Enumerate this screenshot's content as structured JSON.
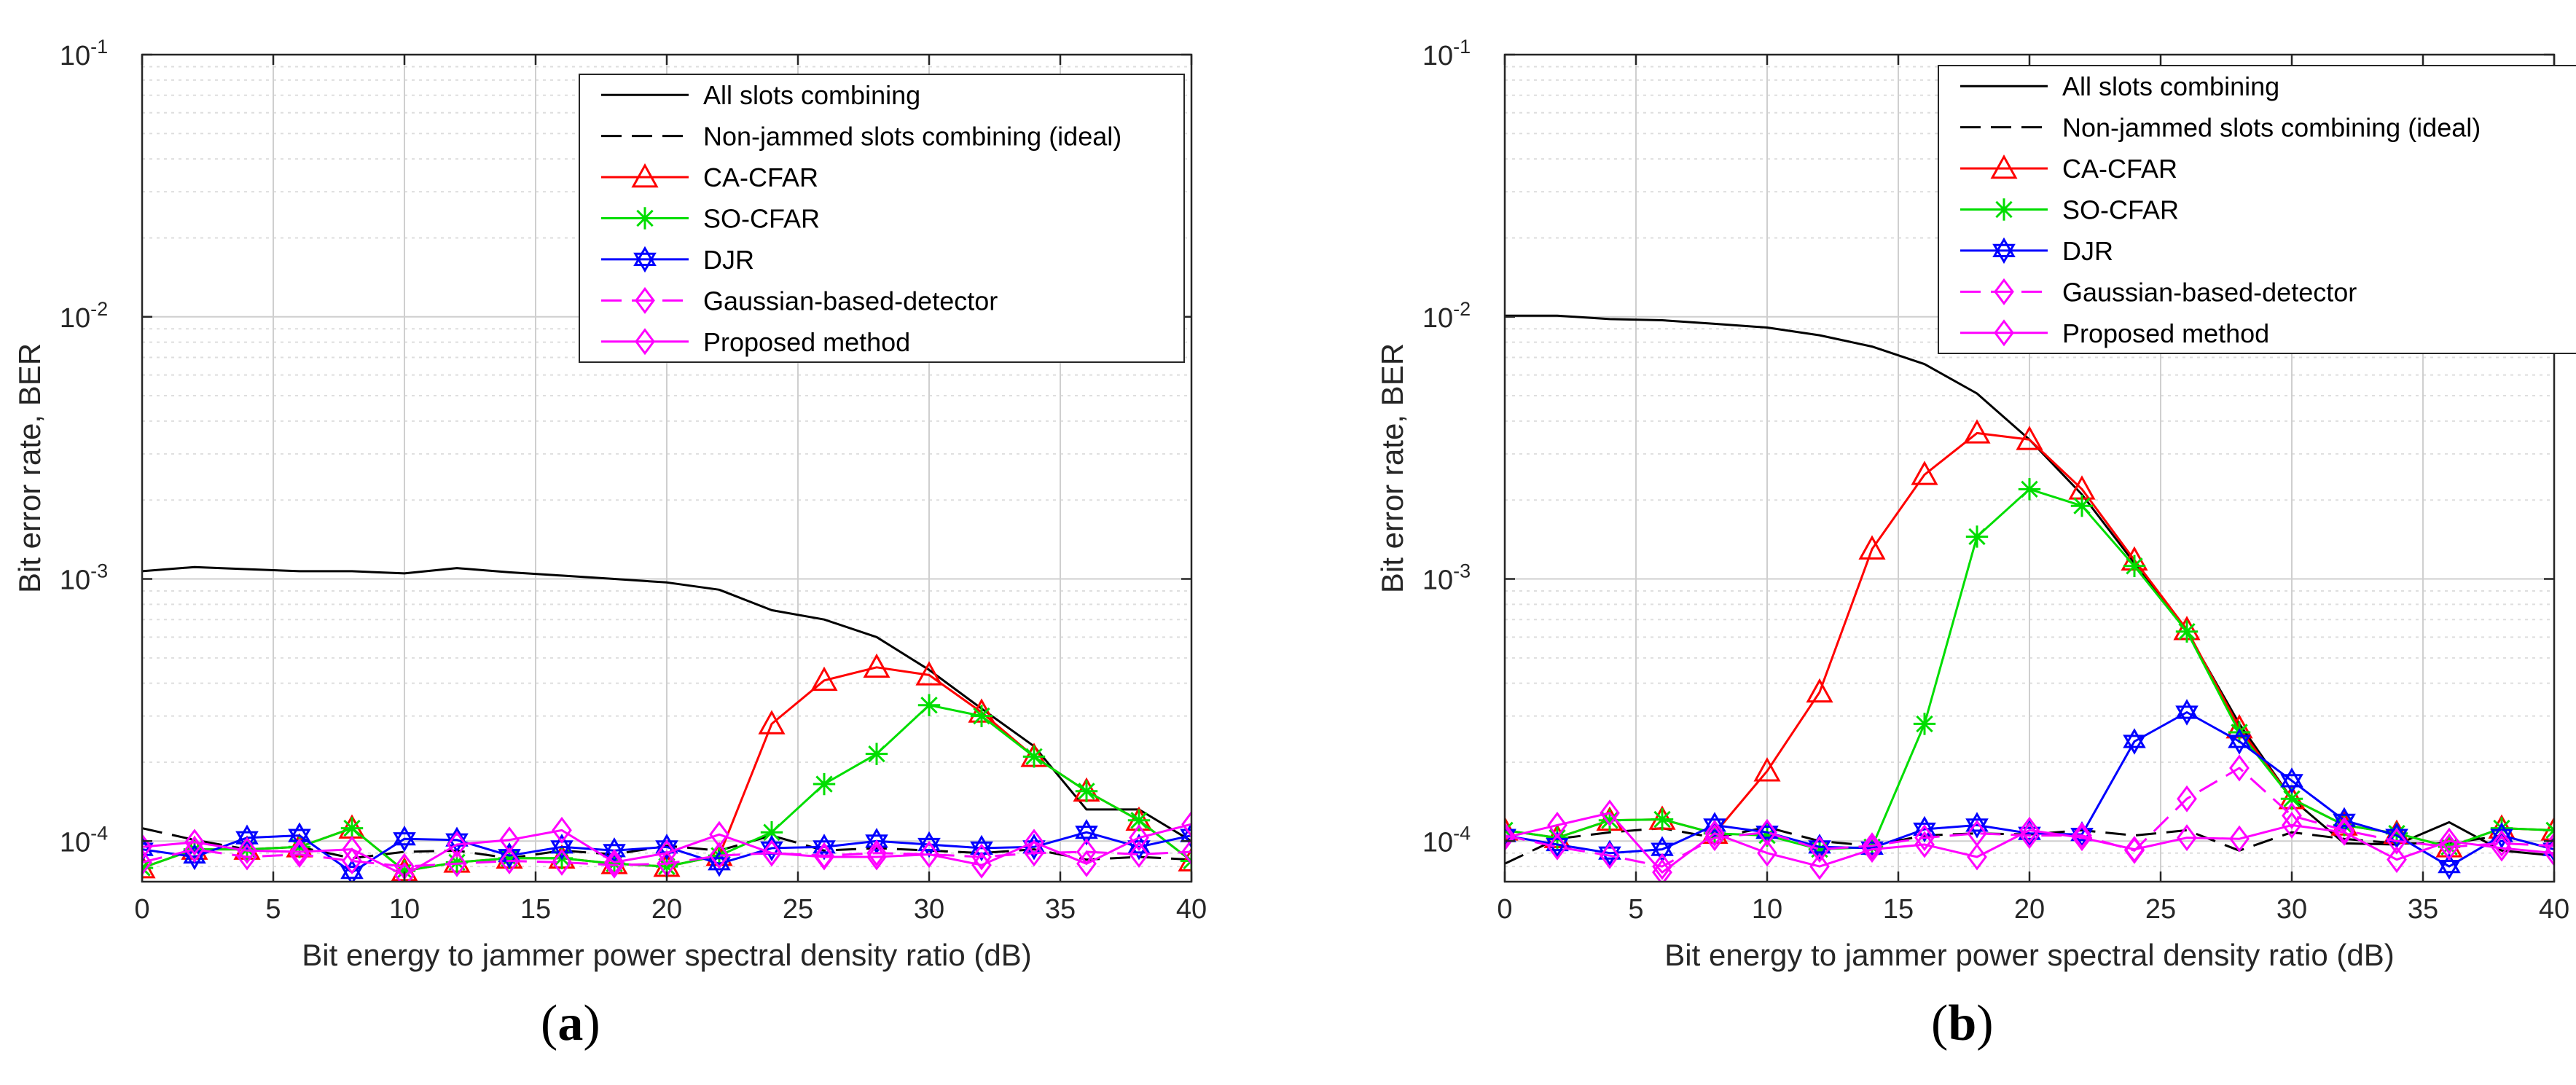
{
  "charts": [
    {
      "id": "a",
      "caption": "(a)",
      "caption_parts": {
        "open": "(",
        "letter": "a",
        "close": ")"
      },
      "chart_data": {
        "type": "line",
        "title": "",
        "xlabel": "Bit energy to jammer power spectral density ratio (dB)",
        "ylabel": "Bit error rate, BER",
        "xlim": [
          0,
          40
        ],
        "ylim": [
          7e-05,
          0.1
        ],
        "yscale": "log",
        "grid": true,
        "legend_position": "top-right",
        "x": [
          0,
          2,
          4,
          6,
          8,
          10,
          12,
          14,
          16,
          18,
          20,
          22,
          24,
          26,
          28,
          30,
          32,
          34,
          36,
          38,
          40
        ],
        "xticks": [
          "0",
          "5",
          "10",
          "15",
          "20",
          "25",
          "30",
          "35",
          "40"
        ],
        "yticks": [
          {
            "base": "10",
            "exp": "-4"
          },
          {
            "base": "10",
            "exp": "-3"
          },
          {
            "base": "10",
            "exp": "-2"
          },
          {
            "base": "10",
            "exp": "-1"
          }
        ],
        "series": [
          {
            "name": "All slots combining",
            "color": "#000000",
            "dash": "solid",
            "marker": "none",
            "values": [
              0.00107,
              0.00111,
              0.00109,
              0.00107,
              0.00107,
              0.00105,
              0.0011,
              0.00106,
              0.00103,
              0.001,
              0.00097,
              0.00091,
              0.00076,
              0.0007,
              0.0006,
              0.00045,
              0.00032,
              0.00023,
              0.000132,
              0.000132,
              0.0001
            ]
          },
          {
            "name": "Non-jammed slots combining (ideal)",
            "color": "#000000",
            "dash": "dash",
            "marker": "none",
            "values": [
              0.000112,
              0.000101,
              9.3e-05,
              9.5e-05,
              8.6e-05,
              9.1e-05,
              9.2e-05,
              8.6e-05,
              9.2e-05,
              8.9e-05,
              9.6e-05,
              9.2e-05,
              0.000105,
              9.2e-05,
              9.4e-05,
              9.2e-05,
              9e-05,
              9.3e-05,
              8.5e-05,
              8.7e-05,
              8.5e-05
            ]
          },
          {
            "name": "CA-CFAR",
            "color": "#ff0000",
            "dash": "solid",
            "marker": "triangle",
            "values": [
              7.9e-05,
              9.3e-05,
              9.3e-05,
              9.5e-05,
              0.000112,
              7.7e-05,
              8.3e-05,
              8.6e-05,
              8.6e-05,
              8.2e-05,
              8e-05,
              8.8e-05,
              0.00028,
              0.00041,
              0.00046,
              0.00043,
              0.00031,
              0.00021,
              0.000155,
              0.00012,
              8.4e-05
            ]
          },
          {
            "name": "SO-CFAR",
            "color": "#00dd00",
            "dash": "solid",
            "marker": "star",
            "values": [
              7.9e-05,
              9.3e-05,
              9.3e-05,
              9.5e-05,
              0.000112,
              7.7e-05,
              8.3e-05,
              8.6e-05,
              8.6e-05,
              8.2e-05,
              8e-05,
              8.8e-05,
              0.000108,
              0.000165,
              0.000215,
              0.00033,
              0.0003,
              0.00021,
              0.000155,
              0.00012,
              8.4e-05
            ]
          },
          {
            "name": "DJR",
            "color": "#0000ff",
            "dash": "solid",
            "marker": "hexagram",
            "values": [
              9.3e-05,
              8.7e-05,
              0.000103,
              0.000105,
              7.6e-05,
              0.000102,
              0.000101,
              8.8e-05,
              9.5e-05,
              9.2e-05,
              9.5e-05,
              8.2e-05,
              9.4e-05,
              9.5e-05,
              0.0001,
              9.7e-05,
              9.4e-05,
              9.5e-05,
              0.000108,
              9.5e-05,
              0.000105
            ]
          },
          {
            "name": "Gaussian-based-detector",
            "color": "#ff00ff",
            "dash": "dash",
            "marker": "diamond",
            "values": [
              8.3e-05,
              9.3e-05,
              8.7e-05,
              8.9e-05,
              8.4e-05,
              8e-05,
              8.2e-05,
              8.4e-05,
              8.3e-05,
              8.1e-05,
              8.2e-05,
              8.8e-05,
              9e-05,
              8.8e-05,
              9e-05,
              8.9e-05,
              8.7e-05,
              9e-05,
              9.1e-05,
              8.9e-05,
              9.1e-05
            ]
          },
          {
            "name": "Proposed method",
            "color": "#ff00ff",
            "dash": "solid",
            "marker": "diamond",
            "values": [
              9.5e-05,
              9.9e-05,
              9.2e-05,
              9.1e-05,
              9.3e-05,
              7.4e-05,
              9.7e-05,
              0.000101,
              0.00011,
              8.3e-05,
              9e-05,
              0.000106,
              9e-05,
              8.7e-05,
              8.7e-05,
              8.9e-05,
              8.1e-05,
              9.9e-05,
              8.2e-05,
              0.000103,
              0.000116
            ]
          }
        ]
      }
    },
    {
      "id": "b",
      "caption": "(b)",
      "caption_parts": {
        "open": "(",
        "letter": "b",
        "close": ")"
      },
      "chart_data": {
        "type": "line",
        "title": "",
        "xlabel": "Bit energy to jammer power spectral density ratio (dB)",
        "ylabel": "Bit error rate, BER",
        "xlim": [
          0,
          40
        ],
        "ylim": [
          7e-05,
          0.1
        ],
        "yscale": "log",
        "grid": true,
        "legend_position": "top-right",
        "x": [
          0,
          2,
          4,
          6,
          8,
          10,
          12,
          14,
          16,
          18,
          20,
          22,
          24,
          26,
          28,
          30,
          32,
          34,
          36,
          38,
          40
        ],
        "xticks": [
          "0",
          "5",
          "10",
          "15",
          "20",
          "25",
          "30",
          "35",
          "40"
        ],
        "yticks": [
          {
            "base": "10",
            "exp": "-4"
          },
          {
            "base": "10",
            "exp": "-3"
          },
          {
            "base": "10",
            "exp": "-2"
          },
          {
            "base": "10",
            "exp": "-1"
          }
        ],
        "series": [
          {
            "name": "All slots combining",
            "color": "#000000",
            "dash": "solid",
            "marker": "none",
            "values": [
              0.0101,
              0.0101,
              0.0098,
              0.0097,
              0.0094,
              0.0091,
              0.0085,
              0.0077,
              0.0066,
              0.0051,
              0.0034,
              0.0021,
              0.00115,
              0.00063,
              0.00028,
              0.000145,
              9.8e-05,
              9.7e-05,
              0.000118,
              9.2e-05,
              8.8e-05
            ]
          },
          {
            "name": "Non-jammed slots combining (ideal)",
            "color": "#000000",
            "dash": "dash",
            "marker": "none",
            "values": [
              8.2e-05,
              0.000102,
              0.000108,
              0.000112,
              0.000103,
              0.000113,
              0.0001,
              9.6e-05,
              0.000105,
              0.000107,
              0.000106,
              0.00011,
              0.000105,
              0.00011,
              9.2e-05,
              0.000108,
              0.000102,
              9.8e-05,
              9.8e-05,
              0.000105,
              9.3e-05
            ]
          },
          {
            "name": "CA-CFAR",
            "color": "#ff0000",
            "dash": "solid",
            "marker": "triangle",
            "values": [
              0.00011,
              0.000103,
              0.00012,
              0.000121,
              0.000107,
              0.000185,
              0.00037,
              0.0013,
              0.0025,
              0.0036,
              0.0034,
              0.0022,
              0.00118,
              0.00064,
              0.00027,
              0.000145,
              0.000115,
              0.000107,
              9.5e-05,
              0.000112,
              0.00011
            ]
          },
          {
            "name": "SO-CFAR",
            "color": "#00dd00",
            "dash": "solid",
            "marker": "star",
            "values": [
              0.00011,
              0.000103,
              0.00012,
              0.000121,
              0.000107,
              0.000105,
              9.3e-05,
              9.5e-05,
              0.00028,
              0.00145,
              0.0022,
              0.0019,
              0.00112,
              0.00063,
              0.00026,
              0.000145,
              0.000115,
              0.000107,
              9.5e-05,
              0.000112,
              0.00011
            ]
          },
          {
            "name": "DJR",
            "color": "#0000ff",
            "dash": "solid",
            "marker": "hexagram",
            "values": [
              0.000105,
              9.7e-05,
              9e-05,
              9.3e-05,
              0.000115,
              0.000108,
              9.5e-05,
              9.4e-05,
              0.000111,
              0.000115,
              0.000107,
              0.000106,
              0.00024,
              0.00031,
              0.00024,
              0.00017,
              0.00012,
              0.000105,
              8e-05,
              0.000105,
              9.3e-05
            ]
          },
          {
            "name": "Gaussian-based-detector",
            "color": "#ff00ff",
            "dash": "dash",
            "marker": "diamond",
            "values": [
              0.000105,
              9.5e-05,
              8.8e-05,
              8e-05,
              0.000103,
              0.000108,
              9.3e-05,
              9.6e-05,
              0.000103,
              0.000107,
              0.000105,
              0.000105,
              9.2e-05,
              0.000145,
              0.00019,
              0.000125,
              0.00011,
              0.0001,
              9.5e-05,
              9.8e-05,
              9.6e-05
            ]
          },
          {
            "name": "Proposed method",
            "color": "#ff00ff",
            "dash": "solid",
            "marker": "diamond",
            "values": [
              0.000103,
              0.000115,
              0.000128,
              7.6e-05,
              0.000107,
              9e-05,
              8e-05,
              9.3e-05,
              9.7e-05,
              8.7e-05,
              0.00011,
              0.000103,
              9.3e-05,
              0.000103,
              0.000102,
              0.000115,
              0.000108,
              8.5e-05,
              0.0001,
              9.4e-05,
              9e-05
            ]
          }
        ]
      }
    }
  ]
}
